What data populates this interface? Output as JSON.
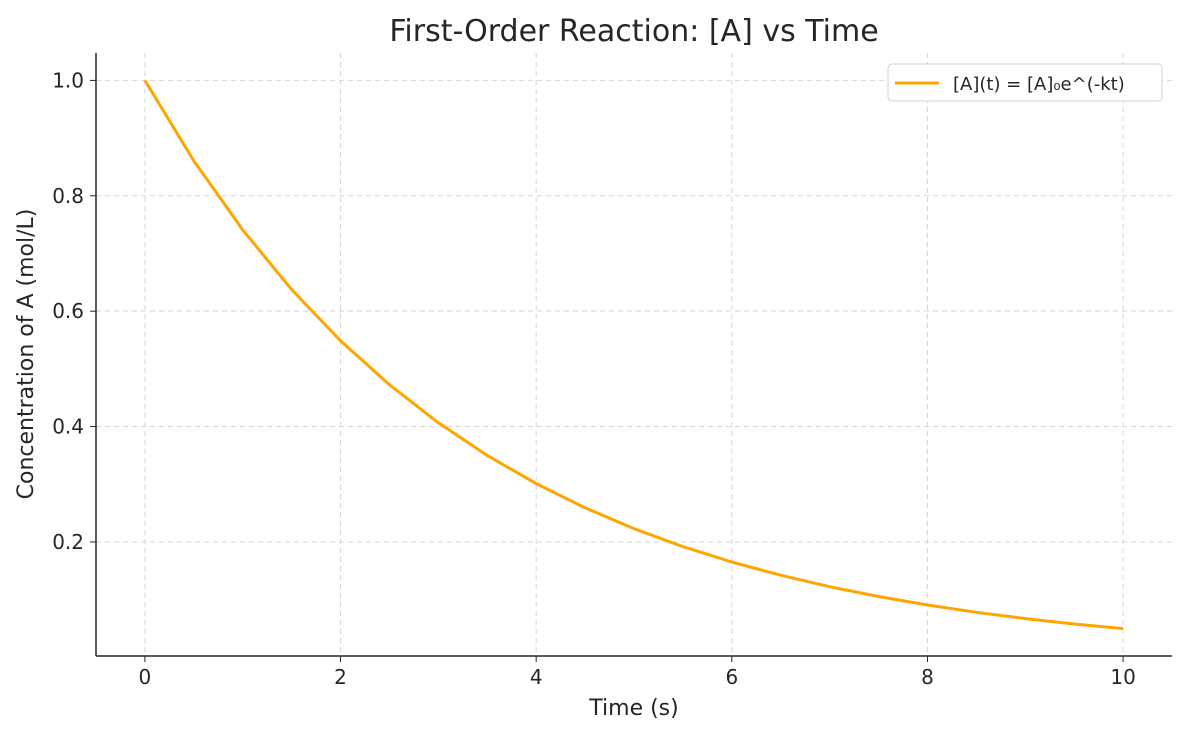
{
  "chart_data": {
    "type": "line",
    "title": "First-Order Reaction: [A] vs Time",
    "xlabel": "Time (s)",
    "ylabel": "Concentration of A (mol/L)",
    "xlim": [
      -0.5,
      10.5
    ],
    "ylim": [
      0.0023,
      1.0475
    ],
    "xticks": [
      0,
      2,
      4,
      6,
      8,
      10
    ],
    "xtick_labels": [
      "0",
      "2",
      "4",
      "6",
      "8",
      "10"
    ],
    "yticks": [
      0.2,
      0.4,
      0.6,
      0.8,
      1.0
    ],
    "ytick_labels": [
      "0.2",
      "0.4",
      "0.6",
      "0.8",
      "1.0"
    ],
    "grid": true,
    "legend_position": "top-right",
    "series": [
      {
        "name": "[A](t) = [A]₀e^(-kt)",
        "color": "#FFA500",
        "x": [
          0,
          0.5,
          1,
          1.5,
          2,
          2.5,
          3,
          3.5,
          4,
          4.5,
          5,
          5.5,
          6,
          6.5,
          7,
          7.5,
          8,
          8.5,
          9,
          9.5,
          10
        ],
        "y": [
          1.0,
          0.8607,
          0.7408,
          0.6376,
          0.5488,
          0.4724,
          0.4066,
          0.3499,
          0.3012,
          0.2592,
          0.2231,
          0.192,
          0.1653,
          0.1423,
          0.1225,
          0.1054,
          0.0907,
          0.0781,
          0.0672,
          0.0578,
          0.0498
        ]
      }
    ]
  }
}
